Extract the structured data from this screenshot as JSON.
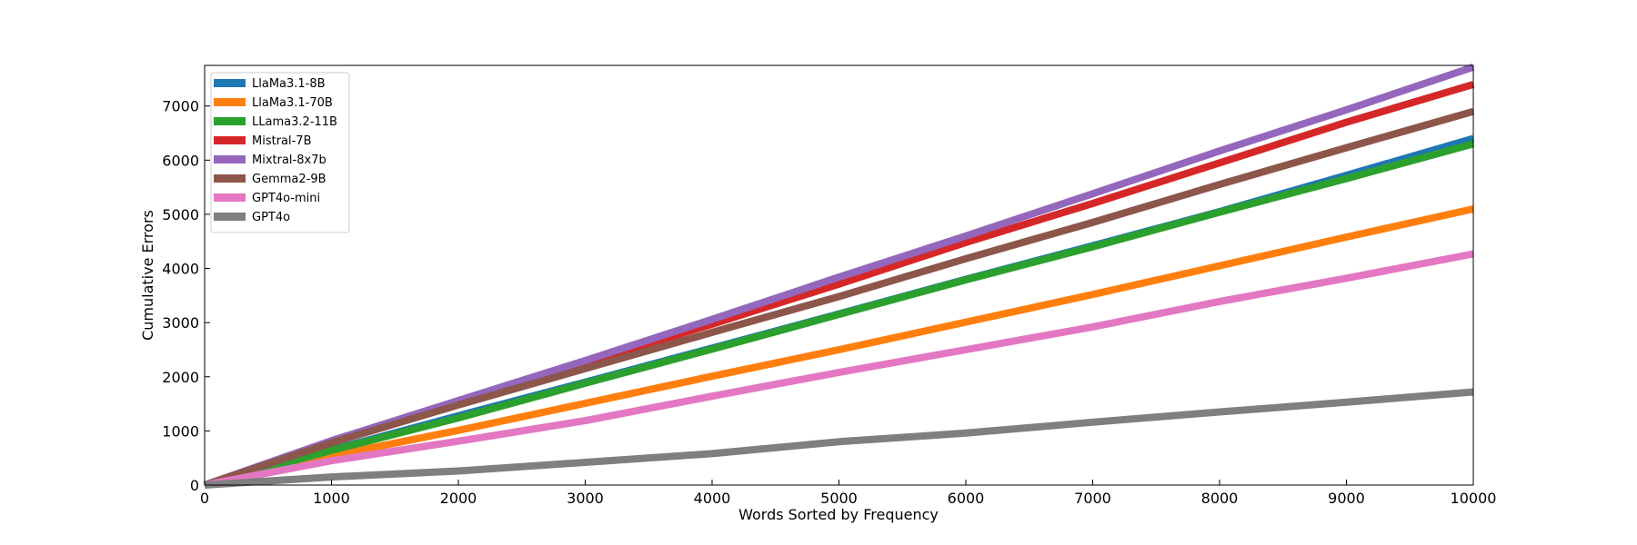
{
  "chart_data": {
    "type": "line",
    "title": "",
    "xlabel": "Words Sorted by Frequency",
    "ylabel": "Cumulative Errors",
    "xlim": [
      0,
      10000
    ],
    "ylim": [
      0,
      7750
    ],
    "xticks": [
      0,
      1000,
      2000,
      3000,
      4000,
      5000,
      6000,
      7000,
      8000,
      9000,
      10000
    ],
    "yticks": [
      0,
      1000,
      2000,
      3000,
      4000,
      5000,
      6000,
      7000
    ],
    "grid": false,
    "legend_position": "top-left",
    "x": [
      0,
      1000,
      2000,
      3000,
      4000,
      5000,
      6000,
      7000,
      8000,
      9000,
      10000
    ],
    "series": [
      {
        "name": "LlaMa3.1-8B",
        "color": "#1f77b4",
        "values": [
          0,
          650,
          1280,
          1900,
          2530,
          3160,
          3800,
          4420,
          5050,
          5720,
          6400
        ]
      },
      {
        "name": "LlaMa3.1-70B",
        "color": "#ff7f0e",
        "values": [
          0,
          540,
          1010,
          1510,
          2010,
          2500,
          3010,
          3520,
          4050,
          4580,
          5100
        ]
      },
      {
        "name": "LLama3.2-11B",
        "color": "#2ca02c",
        "values": [
          0,
          640,
          1240,
          1880,
          2510,
          3150,
          3790,
          4400,
          5040,
          5660,
          6300
        ]
      },
      {
        "name": "Mistral-7B",
        "color": "#d62728",
        "values": [
          0,
          800,
          1530,
          2250,
          2970,
          3710,
          4480,
          5200,
          5950,
          6700,
          7400
        ]
      },
      {
        "name": "Mixtral-8x7b",
        "color": "#9467bd",
        "values": [
          0,
          820,
          1560,
          2300,
          3060,
          3840,
          4600,
          5380,
          6170,
          6930,
          7720
        ]
      },
      {
        "name": "Gemma2-9B",
        "color": "#8c564b",
        "values": [
          0,
          780,
          1480,
          2150,
          2820,
          3480,
          4180,
          4850,
          5550,
          6230,
          6900
        ]
      },
      {
        "name": "GPT4o-mini",
        "color": "#e377c2",
        "values": [
          0,
          450,
          810,
          1190,
          1640,
          2080,
          2500,
          2920,
          3390,
          3820,
          4270
        ]
      },
      {
        "name": "GPT4o",
        "color": "#7f7f7f",
        "values": [
          0,
          150,
          260,
          420,
          580,
          800,
          960,
          1160,
          1350,
          1530,
          1720
        ]
      }
    ]
  }
}
